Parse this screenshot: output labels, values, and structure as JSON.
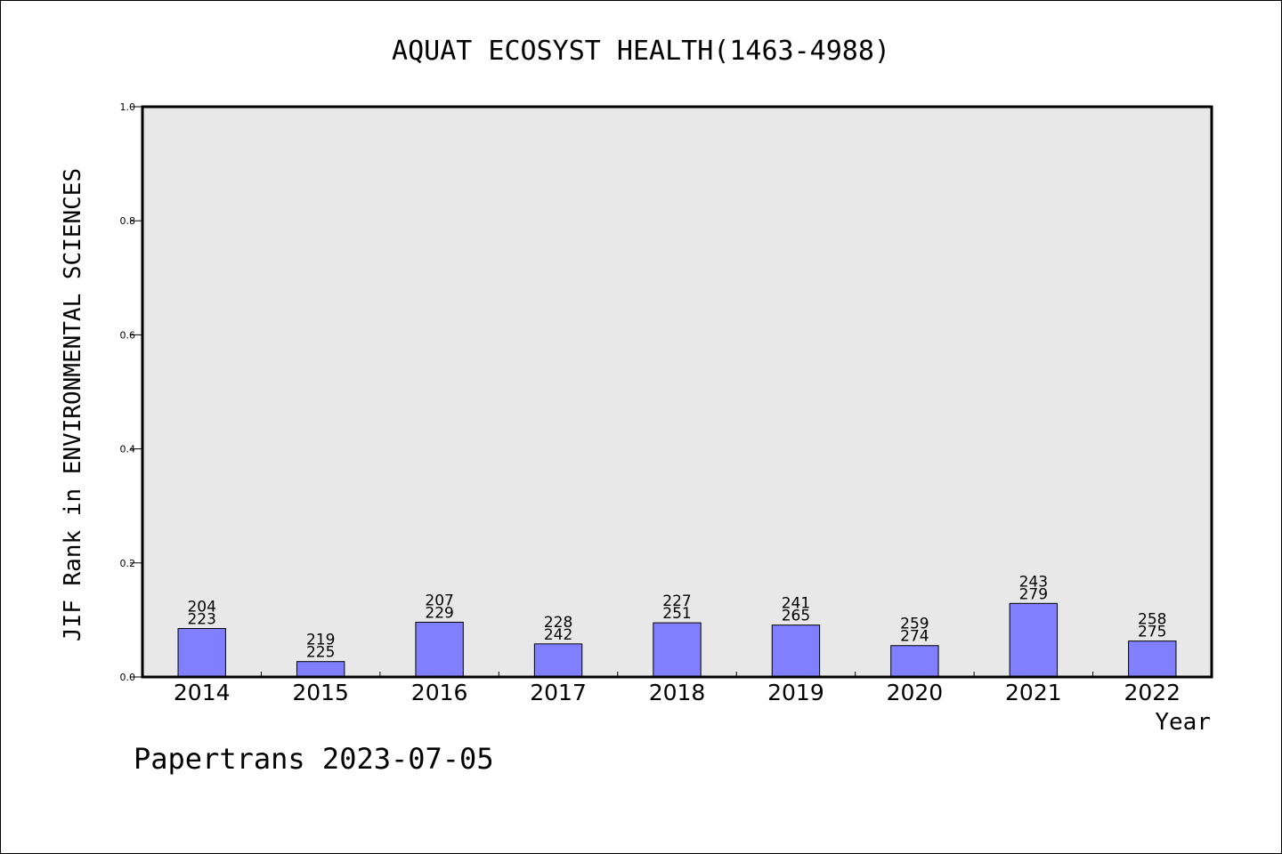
{
  "chart_data": {
    "type": "bar",
    "title": "AQUAT ECOSYST HEALTH(1463-4988)",
    "xlabel": "Year",
    "ylabel": "JIF Rank in ENVIRONMENTAL SCIENCES",
    "ylim": [
      0,
      1.0
    ],
    "yticks": [
      "0.0",
      "0.2",
      "0.4",
      "0.6",
      "0.8",
      "1.0"
    ],
    "categories": [
      "2014",
      "2015",
      "2016",
      "2017",
      "2018",
      "2019",
      "2020",
      "2021",
      "2022"
    ],
    "values": [
      0.085,
      0.027,
      0.096,
      0.058,
      0.095,
      0.091,
      0.055,
      0.129,
      0.063
    ],
    "rank_labels": [
      "204",
      "219",
      "207",
      "228",
      "227",
      "241",
      "259",
      "243",
      "258"
    ],
    "total_labels": [
      "223",
      "225",
      "229",
      "242",
      "251",
      "265",
      "274",
      "279",
      "275"
    ],
    "bar_color": "#8080ff",
    "plot_background": "#e8e8e8",
    "grid": false,
    "legend": "none"
  },
  "footer": {
    "watermark": "Papertrans 2023-07-05"
  }
}
